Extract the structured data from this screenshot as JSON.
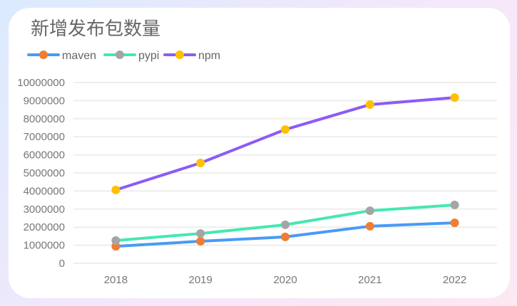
{
  "chart_data": {
    "type": "line",
    "title": "新增发布包数量",
    "categories": [
      "2018",
      "2019",
      "2020",
      "2021",
      "2022"
    ],
    "ylim": [
      0,
      10000000
    ],
    "yticks": [
      "0",
      "1000000",
      "2000000",
      "3000000",
      "4000000",
      "5000000",
      "6000000",
      "7000000",
      "8000000",
      "9000000",
      "10000000"
    ],
    "grid": true,
    "legend_position": "top-left",
    "series": [
      {
        "name": "maven",
        "line_color": "#4a9af5",
        "marker_color": "#ef7d32",
        "values": [
          940000,
          1220000,
          1460000,
          2050000,
          2240000
        ]
      },
      {
        "name": "pypi",
        "line_color": "#45e8b0",
        "marker_color": "#a5a5a5",
        "values": [
          1260000,
          1650000,
          2130000,
          2910000,
          3230000
        ]
      },
      {
        "name": "npm",
        "line_color": "#8b5cf6",
        "marker_color": "#ffc000",
        "values": [
          4060000,
          5550000,
          7400000,
          8780000,
          9170000
        ]
      }
    ]
  }
}
